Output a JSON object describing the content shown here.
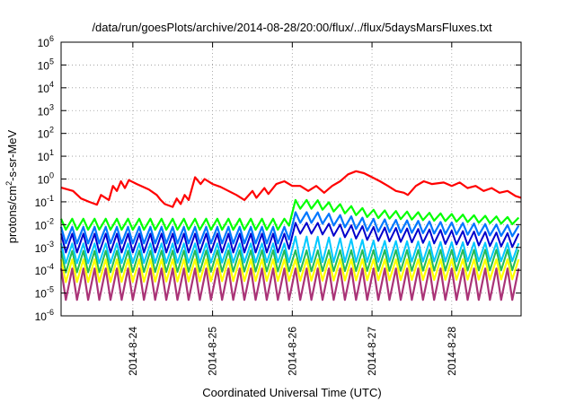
{
  "chart_data": {
    "type": "line",
    "title": "/data/run/goesPlots/archive/2014-08-28/20:00/flux/../flux/5daysMarsFluxes.txt",
    "xlabel": "Coordinated Universal Time (UTC)",
    "ylabel": "protons/cm²-s-sr-MeV",
    "ylabel_parts": {
      "base": "protons/cm",
      "sup": "2",
      "rest": "-s-sr-MeV"
    },
    "yscale": "log",
    "ylim_exp": [
      -6,
      6
    ],
    "y_ticks": [
      {
        "base": "10",
        "exp": "-6"
      },
      {
        "base": "10",
        "exp": "-5"
      },
      {
        "base": "10",
        "exp": "-4"
      },
      {
        "base": "10",
        "exp": "-3"
      },
      {
        "base": "10",
        "exp": "-2"
      },
      {
        "base": "10",
        "exp": "-1"
      },
      {
        "base": "10",
        "exp": "0"
      },
      {
        "base": "10",
        "exp": "1"
      },
      {
        "base": "10",
        "exp": "2"
      },
      {
        "base": "10",
        "exp": "3"
      },
      {
        "base": "10",
        "exp": "4"
      },
      {
        "base": "10",
        "exp": "5"
      },
      {
        "base": "10",
        "exp": "6"
      }
    ],
    "x_ticks": [
      "2014-8-24",
      "2014-8-25",
      "2014-8-26",
      "2014-8-27",
      "2014-8-28"
    ],
    "xlim_days": [
      23.1,
      28.87
    ],
    "grid": true,
    "series": [
      {
        "color": "#ff0000",
        "width": 2.2,
        "points": [
          [
            23.1,
            0.42
          ],
          [
            23.25,
            0.3
          ],
          [
            23.35,
            0.14
          ],
          [
            23.45,
            0.1
          ],
          [
            23.55,
            0.075
          ],
          [
            23.6,
            0.2
          ],
          [
            23.7,
            0.12
          ],
          [
            23.75,
            0.5
          ],
          [
            23.8,
            0.3
          ],
          [
            23.85,
            0.8
          ],
          [
            23.9,
            0.4
          ],
          [
            23.95,
            0.9
          ],
          [
            24.05,
            0.6
          ],
          [
            24.2,
            0.35
          ],
          [
            24.3,
            0.2
          ],
          [
            24.35,
            0.12
          ],
          [
            24.4,
            0.08
          ],
          [
            24.5,
            0.06
          ],
          [
            24.55,
            0.14
          ],
          [
            24.6,
            0.08
          ],
          [
            24.65,
            0.2
          ],
          [
            24.7,
            0.12
          ],
          [
            24.78,
            1.2
          ],
          [
            24.85,
            0.6
          ],
          [
            24.9,
            1.0
          ],
          [
            25.0,
            0.6
          ],
          [
            25.1,
            0.45
          ],
          [
            25.2,
            0.3
          ],
          [
            25.3,
            0.2
          ],
          [
            25.4,
            0.12
          ],
          [
            25.5,
            0.3
          ],
          [
            25.55,
            0.15
          ],
          [
            25.65,
            0.4
          ],
          [
            25.7,
            0.22
          ],
          [
            25.8,
            0.6
          ],
          [
            25.9,
            0.8
          ],
          [
            26.0,
            0.5
          ],
          [
            26.1,
            0.5
          ],
          [
            26.2,
            0.3
          ],
          [
            26.3,
            0.5
          ],
          [
            26.4,
            0.25
          ],
          [
            26.5,
            0.5
          ],
          [
            26.6,
            0.8
          ],
          [
            26.7,
            1.6
          ],
          [
            26.8,
            2.2
          ],
          [
            26.9,
            1.8
          ],
          [
            27.0,
            1.2
          ],
          [
            27.1,
            0.8
          ],
          [
            27.2,
            0.5
          ],
          [
            27.3,
            0.3
          ],
          [
            27.4,
            0.25
          ],
          [
            27.45,
            0.2
          ],
          [
            27.55,
            0.5
          ],
          [
            27.65,
            0.8
          ],
          [
            27.75,
            0.6
          ],
          [
            27.9,
            0.7
          ],
          [
            28.0,
            0.5
          ],
          [
            28.1,
            0.7
          ],
          [
            28.2,
            0.4
          ],
          [
            28.3,
            0.5
          ],
          [
            28.4,
            0.3
          ],
          [
            28.5,
            0.4
          ],
          [
            28.6,
            0.25
          ],
          [
            28.7,
            0.3
          ],
          [
            28.8,
            0.18
          ],
          [
            28.87,
            0.15
          ]
        ]
      },
      {
        "color": "#00ff00",
        "width": 2.2,
        "sawtooth": {
          "period": 0.14,
          "lo": [
            [
              23.1,
              0.006
            ],
            [
              25.95,
              0.006
            ],
            [
              26.0,
              0.05
            ],
            [
              26.3,
              0.05
            ],
            [
              27.0,
              0.02
            ],
            [
              28.87,
              0.01
            ]
          ],
          "hi": [
            [
              23.1,
              0.018
            ],
            [
              25.95,
              0.018
            ],
            [
              26.0,
              0.12
            ],
            [
              26.3,
              0.12
            ],
            [
              27.0,
              0.045
            ],
            [
              28.87,
              0.02
            ]
          ]
        }
      },
      {
        "color": "#0077ff",
        "width": 2.2,
        "sawtooth": {
          "period": 0.14,
          "lo": [
            [
              23.1,
              0.0015
            ],
            [
              25.95,
              0.0015
            ],
            [
              26.0,
              0.012
            ],
            [
              26.3,
              0.012
            ],
            [
              27.0,
              0.005
            ],
            [
              28.87,
              0.003
            ]
          ],
          "hi": [
            [
              23.1,
              0.008
            ],
            [
              25.95,
              0.008
            ],
            [
              26.0,
              0.035
            ],
            [
              26.3,
              0.035
            ],
            [
              27.0,
              0.018
            ],
            [
              28.87,
              0.009
            ]
          ]
        }
      },
      {
        "color": "#0000cc",
        "width": 2.0,
        "sawtooth": {
          "period": 0.14,
          "lo": [
            [
              23.1,
              0.0006
            ],
            [
              25.95,
              0.0006
            ],
            [
              26.0,
              0.004
            ],
            [
              26.3,
              0.004
            ],
            [
              27.0,
              0.002
            ],
            [
              28.87,
              0.001
            ]
          ],
          "hi": [
            [
              23.1,
              0.004
            ],
            [
              25.95,
              0.004
            ],
            [
              26.0,
              0.012
            ],
            [
              26.3,
              0.012
            ],
            [
              27.0,
              0.008
            ],
            [
              28.87,
              0.004
            ]
          ]
        }
      },
      {
        "color": "#00c8ff",
        "width": 2.0,
        "sawtooth": {
          "period": 0.14,
          "lo": [
            [
              23.1,
              0.0002
            ],
            [
              28.87,
              0.00025
            ]
          ],
          "hi": [
            [
              23.1,
              0.0015
            ],
            [
              25.95,
              0.0015
            ],
            [
              26.0,
              0.003
            ],
            [
              26.3,
              0.003
            ],
            [
              27.0,
              0.002
            ],
            [
              28.87,
              0.0015
            ]
          ]
        }
      },
      {
        "color": "#22bb55",
        "width": 2.0,
        "sawtooth": {
          "period": 0.14,
          "lo": [
            [
              23.1,
              8e-05
            ],
            [
              28.87,
              0.0001
            ]
          ],
          "hi": [
            [
              23.1,
              0.0007
            ],
            [
              28.87,
              0.0008
            ]
          ]
        }
      },
      {
        "color": "#ffff00",
        "width": 2.2,
        "sawtooth": {
          "period": 0.14,
          "lo": [
            [
              23.1,
              3e-05
            ],
            [
              28.87,
              4e-05
            ]
          ],
          "hi": [
            [
              23.1,
              0.0003
            ],
            [
              28.87,
              0.0003
            ]
          ]
        }
      },
      {
        "color": "#aa3377",
        "width": 2.2,
        "sawtooth": {
          "period": 0.14,
          "lo": [
            [
              23.1,
              5e-06
            ],
            [
              28.87,
              5e-06
            ]
          ],
          "hi": [
            [
              23.1,
              0.00012
            ],
            [
              28.87,
              0.00012
            ]
          ]
        }
      }
    ]
  }
}
